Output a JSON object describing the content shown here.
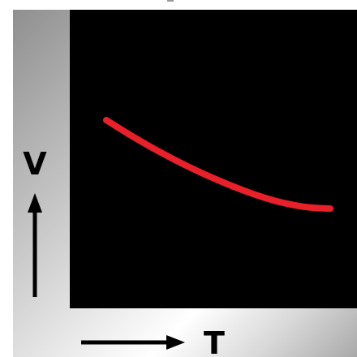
{
  "chart_data": {
    "type": "line",
    "title": "",
    "xlabel": "T",
    "ylabel": "V",
    "xlim": [
      0,
      1
    ],
    "ylim": [
      0,
      1
    ],
    "grid": false,
    "series": [
      {
        "color": "#e8202a",
        "x": [
          0.0,
          0.1,
          0.2,
          0.3,
          0.4,
          0.5,
          0.6,
          0.7,
          0.8,
          0.9,
          1.0
        ],
        "y": [
          1.0,
          0.86,
          0.73,
          0.61,
          0.5,
          0.4,
          0.31,
          0.23,
          0.17,
          0.13,
          0.12
        ]
      }
    ]
  },
  "colors": {
    "plot_background": "#000000",
    "curve": "#e8202a",
    "axis": "#000000"
  }
}
